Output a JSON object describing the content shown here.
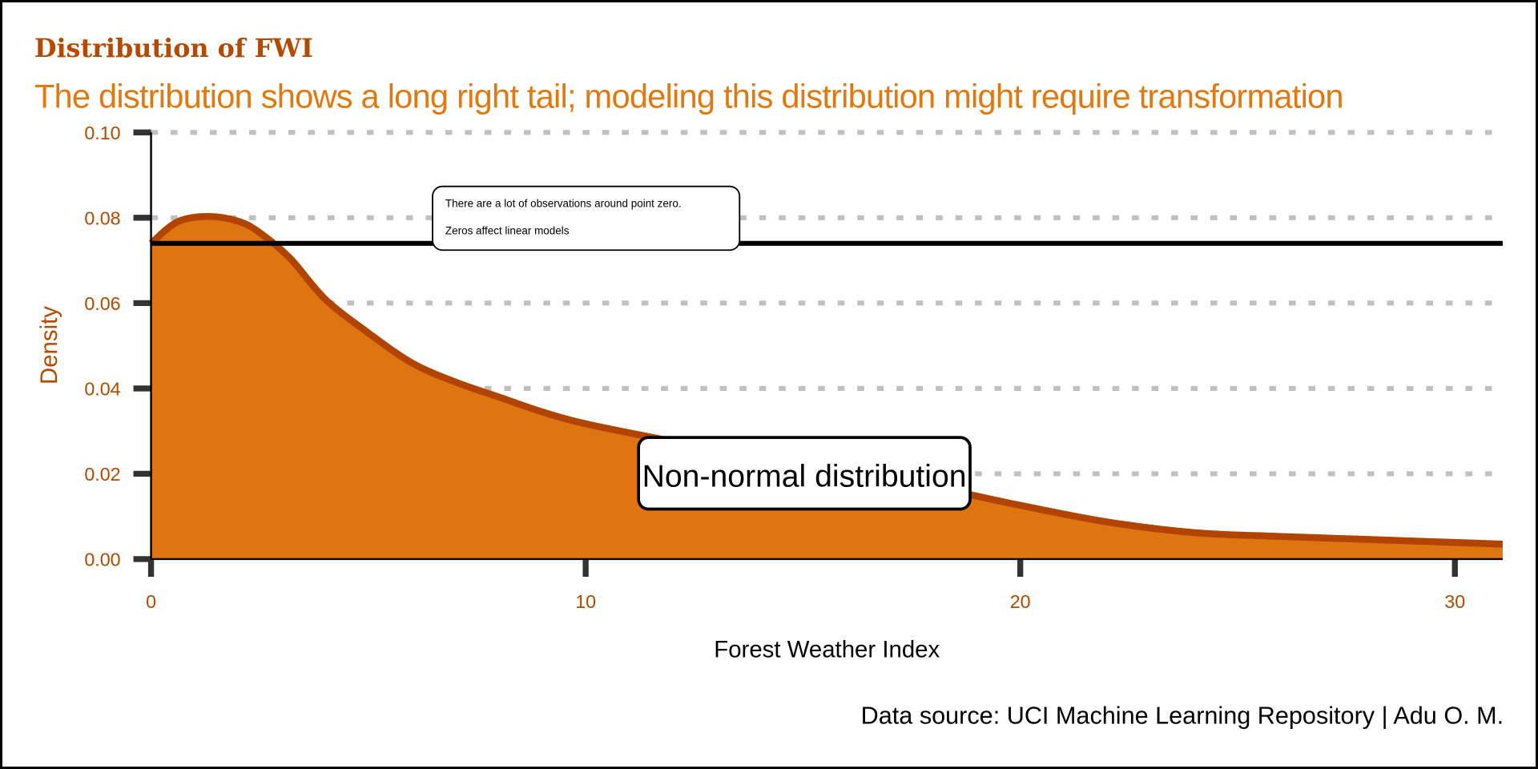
{
  "chart_data": {
    "type": "area",
    "title": "Distribution of FWI",
    "subtitle": "The distribution shows a long right tail; modeling this distribution might require transformation",
    "xlabel": "Forest Weather Index",
    "ylabel": "Density",
    "caption": "Data source: UCI Machine Learning Repository | Adu O. M.",
    "xlim": [
      0,
      31.1
    ],
    "ylim": [
      0,
      0.1
    ],
    "x_ticks": [
      "0",
      "10",
      "20",
      "30"
    ],
    "y_ticks": [
      "0.00",
      "0.02",
      "0.04",
      "0.06",
      "0.08",
      "0.10"
    ],
    "grid": "horizontal dotted",
    "series": [
      {
        "x": [
          0,
          0.6,
          1.3,
          2.0,
          2.5,
          3.2,
          4,
          5,
          6,
          7,
          8,
          9,
          10,
          12,
          15,
          18,
          20,
          22,
          24,
          26,
          28,
          30,
          31.1
        ],
        "y": [
          0.074,
          0.079,
          0.0803,
          0.0792,
          0.0765,
          0.0705,
          0.061,
          0.053,
          0.046,
          0.0415,
          0.038,
          0.0345,
          0.0317,
          0.0276,
          0.0218,
          0.0168,
          0.0126,
          0.0087,
          0.0062,
          0.0053,
          0.0046,
          0.0039,
          0.0035
        ]
      }
    ],
    "hline": {
      "y": 0.074
    },
    "annotations": [
      {
        "lines": [
          "There are a lot of observations around point zero.",
          "Zeros affect linear models"
        ]
      },
      {
        "text": "Non-normal distribution",
        "x": 15,
        "y": 0.02
      }
    ],
    "colors": {
      "fill": "#e07410",
      "outline": "#b04400",
      "title": "#b34a00",
      "subtitle": "#e07a10",
      "grid": "#c0c0c0"
    }
  }
}
